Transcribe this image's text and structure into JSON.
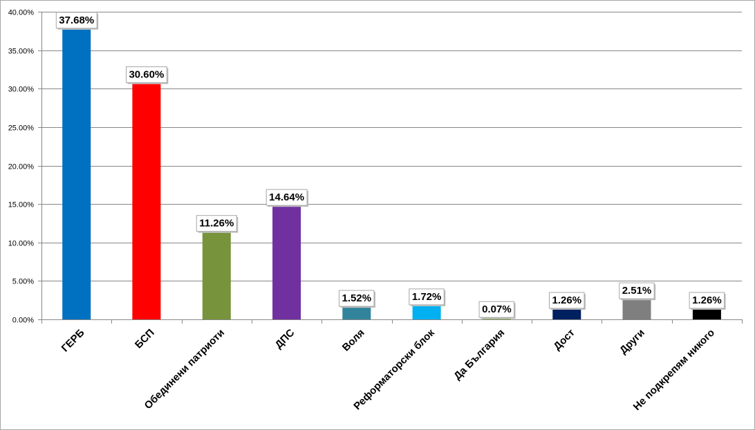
{
  "chart_data": {
    "type": "bar",
    "title": "",
    "xlabel": "",
    "ylabel": "",
    "ylim": [
      0,
      40
    ],
    "y_tick_step": 5,
    "y_tick_format": "percent_2dp",
    "grid": true,
    "legend": "none",
    "categories": [
      "ГЕРБ",
      "БСП",
      "Обединени патриоти",
      "ДПС",
      "Воля",
      "Реформаторски блок",
      "Да България",
      "Дост",
      "Други",
      "Не подкрепям никого"
    ],
    "values": [
      37.68,
      30.6,
      11.26,
      14.64,
      1.52,
      1.72,
      0.07,
      1.26,
      2.51,
      1.26
    ],
    "data_labels": [
      "37.68%",
      "30.60%",
      "11.26%",
      "14.64%",
      "1.52%",
      "1.72%",
      "0.07%",
      "1.26%",
      "2.51%",
      "1.26%"
    ],
    "colors": [
      "#0070c0",
      "#ff0000",
      "#77933c",
      "#7030a0",
      "#31849b",
      "#00b0f0",
      "#9bbb59",
      "#002060",
      "#7f7f7f",
      "#000000"
    ]
  }
}
